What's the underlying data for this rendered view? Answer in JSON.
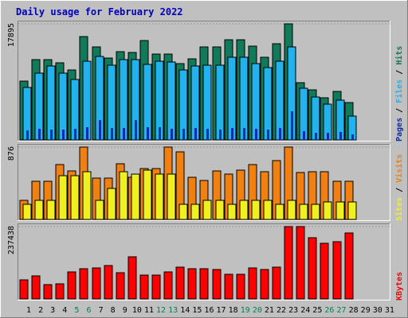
{
  "chart_data": [
    {
      "type": "bar",
      "title": "Daily usage for February 2022",
      "categories": [
        "1",
        "2",
        "3",
        "4",
        "5",
        "6",
        "7",
        "8",
        "9",
        "10",
        "11",
        "12",
        "13",
        "14",
        "15",
        "16",
        "17",
        "18",
        "19",
        "20",
        "21",
        "22",
        "23",
        "24",
        "25",
        "26",
        "27",
        "28",
        "29",
        "30",
        "31"
      ],
      "weekend_days": [
        "5",
        "6",
        "12",
        "13",
        "19",
        "20",
        "26",
        "27"
      ],
      "ymax_label": "17895",
      "ylabel": [
        "Pages",
        "Files",
        "Hits"
      ],
      "series": [
        {
          "name": "Hits",
          "color": "#117a5a",
          "values": [
            9020,
            12330,
            12330,
            11880,
            10800,
            15970,
            14280,
            12660,
            13610,
            13510,
            15380,
            13290,
            13190,
            11740,
            12470,
            14380,
            14370,
            15430,
            15430,
            14410,
            12790,
            14820,
            17900,
            8770,
            7720,
            6540,
            7420,
            5740,
            null,
            null,
            null
          ]
        },
        {
          "name": "Files",
          "color": "#22b2ee",
          "values": [
            8100,
            10250,
            11360,
            10300,
            9350,
            12080,
            12890,
            11520,
            12430,
            12430,
            11660,
            12080,
            11980,
            10770,
            11460,
            11550,
            11550,
            12710,
            12710,
            11820,
            11140,
            12160,
            14320,
            7960,
            6560,
            5560,
            6100,
            3630,
            null,
            null,
            null
          ]
        },
        {
          "name": "Pages",
          "color": "#0b2eb2",
          "values": [
            1460,
            1740,
            1650,
            1560,
            1750,
            2020,
            3090,
            1840,
            1800,
            3010,
            1970,
            1920,
            1700,
            1700,
            1780,
            1660,
            1620,
            1800,
            1830,
            1730,
            1620,
            1830,
            4380,
            1310,
            1120,
            1080,
            1180,
            860,
            null,
            null,
            null
          ]
        }
      ]
    },
    {
      "type": "bar",
      "ymax_label": "876",
      "ylabel": [
        "Sites",
        "Visits"
      ],
      "series": [
        {
          "name": "Visits",
          "color": "#f08010",
          "values": [
            230,
            460,
            460,
            660,
            590,
            876,
            500,
            500,
            676,
            512,
            612,
            618,
            876,
            818,
            510,
            471,
            591,
            551,
            600,
            660,
            581,
            716,
            880,
            566,
            573,
            573,
            459,
            459,
            null,
            null,
            null
          ]
        },
        {
          "name": "Sites",
          "color": "#f0f020",
          "values": [
            182,
            232,
            232,
            532,
            532,
            582,
            232,
            372,
            582,
            546,
            596,
            546,
            546,
            182,
            182,
            233,
            233,
            182,
            233,
            233,
            233,
            182,
            233,
            182,
            182,
            212,
            212,
            212,
            null,
            null,
            null
          ]
        }
      ]
    },
    {
      "type": "bar",
      "ymax_label": "237438",
      "ylabel": [
        "KBytes"
      ],
      "series": [
        {
          "name": "KBytes",
          "color": "#ff0000",
          "values": [
            62000,
            76000,
            46000,
            50000,
            88000,
            98000,
            103000,
            110000,
            85000,
            137000,
            78000,
            78000,
            89000,
            105000,
            98000,
            99000,
            96000,
            82000,
            80000,
            101000,
            96000,
            104000,
            237438,
            237438,
            200000,
            183000,
            188000,
            217000,
            null,
            null,
            null
          ]
        }
      ]
    }
  ]
}
